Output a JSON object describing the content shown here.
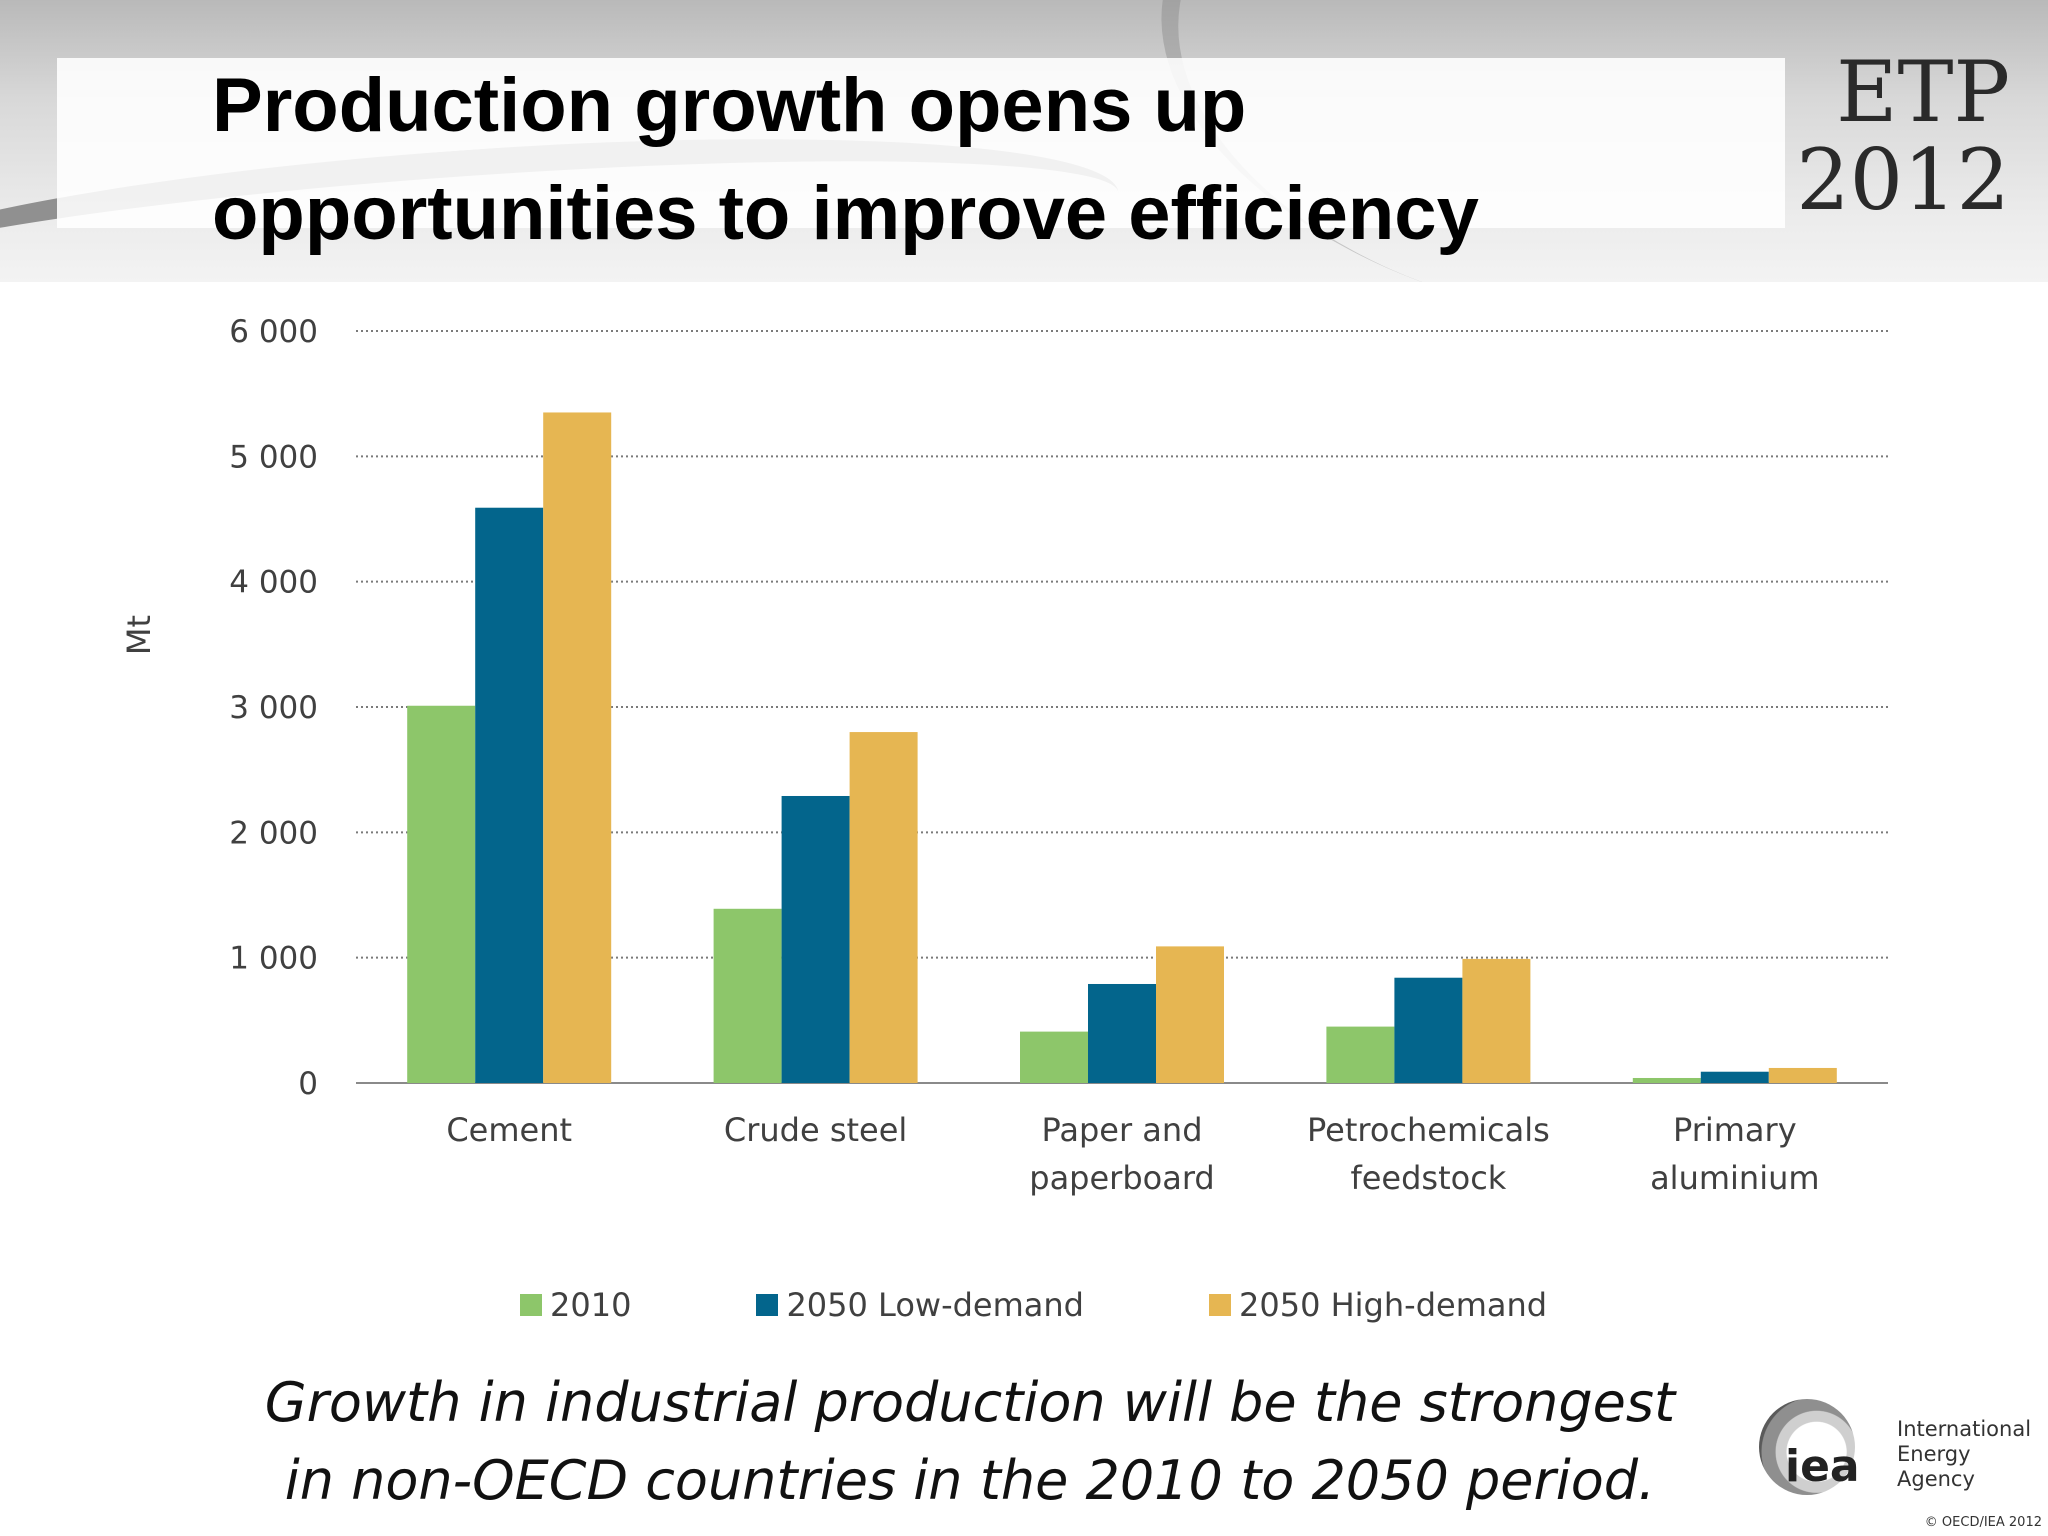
{
  "title": {
    "line1": "Production growth opens up",
    "line2": "opportunities to improve efficiency"
  },
  "logo": {
    "line1": "ETP",
    "line2": "2012"
  },
  "chart_data": {
    "type": "bar",
    "categories": [
      [
        "Cement"
      ],
      [
        "Crude steel"
      ],
      [
        "Paper and",
        "paperboard"
      ],
      [
        "Petrochemicals",
        "feedstock"
      ],
      [
        "Primary",
        "aluminium"
      ]
    ],
    "series": [
      {
        "name": "2010",
        "color": "#8dc66a",
        "values": [
          3010,
          1390,
          410,
          450,
          40
        ]
      },
      {
        "name": "2050 Low-demand",
        "color": "#03658c",
        "values": [
          4590,
          2290,
          790,
          840,
          90
        ]
      },
      {
        "name": "2050 High-demand",
        "color": "#e6b652",
        "values": [
          5350,
          2800,
          1090,
          990,
          120
        ]
      }
    ],
    "ylabel": "Mt",
    "ylim": [
      0,
      6000
    ],
    "yticks": [
      0,
      1000,
      2000,
      3000,
      4000,
      5000,
      6000
    ],
    "ytick_labels": [
      "0",
      "1 000",
      "2 000",
      "3 000",
      "4 000",
      "5 000",
      "6 000"
    ],
    "grid": "dotted horizontal",
    "legend_position": "bottom"
  },
  "caption": {
    "line1": "Growth in industrial production will be the strongest",
    "line2": "in non-OECD countries in the 2010 to 2050 period."
  },
  "iea": {
    "mark": "iea",
    "name_line1": "International",
    "name_line2": "Energy Agency"
  },
  "copyright": "© OECD/IEA 2012"
}
